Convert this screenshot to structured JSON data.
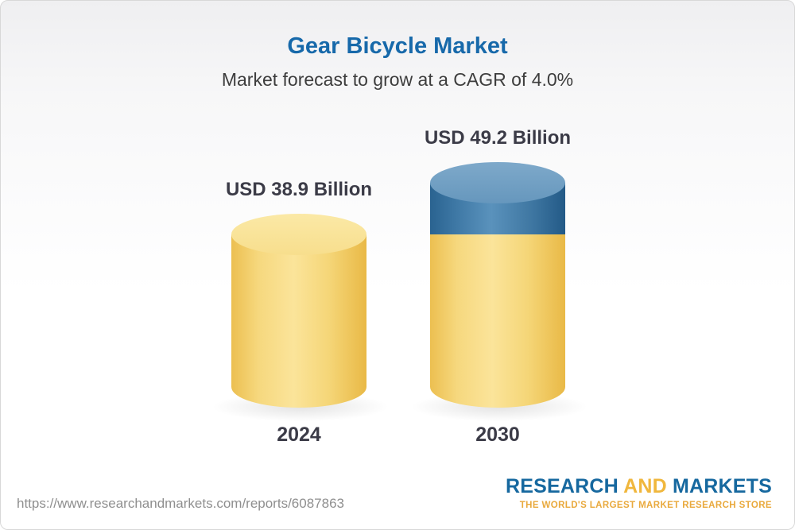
{
  "header": {
    "title": "Gear Bicycle Market",
    "subtitle": "Market forecast to grow at a CAGR of 4.0%"
  },
  "chart_data": {
    "type": "bar",
    "variant": "3d-cylinder",
    "categories": [
      "2024",
      "2030"
    ],
    "values": [
      38.9,
      49.2
    ],
    "value_labels": [
      "USD 38.9 Billion",
      "USD 49.2 Billion"
    ],
    "unit": "USD Billion",
    "cagr_percent": 4.0,
    "legend": "none",
    "grid": false,
    "colors": {
      "base_segment": "#F2CE66",
      "growth_segment": "#3C76A3",
      "title_text": "#1769AA",
      "label_text": "#3B3B47"
    },
    "notes": "2030 cylinder shows growth above 2024 value as a blue top segment on the yellow base"
  },
  "footer": {
    "url": "https://www.researchandmarkets.com/reports/6087863",
    "logo": {
      "research": "RESEARCH",
      "and": "AND",
      "markets": "MARKETS",
      "tagline": "THE WORLD'S LARGEST MARKET RESEARCH STORE"
    }
  }
}
